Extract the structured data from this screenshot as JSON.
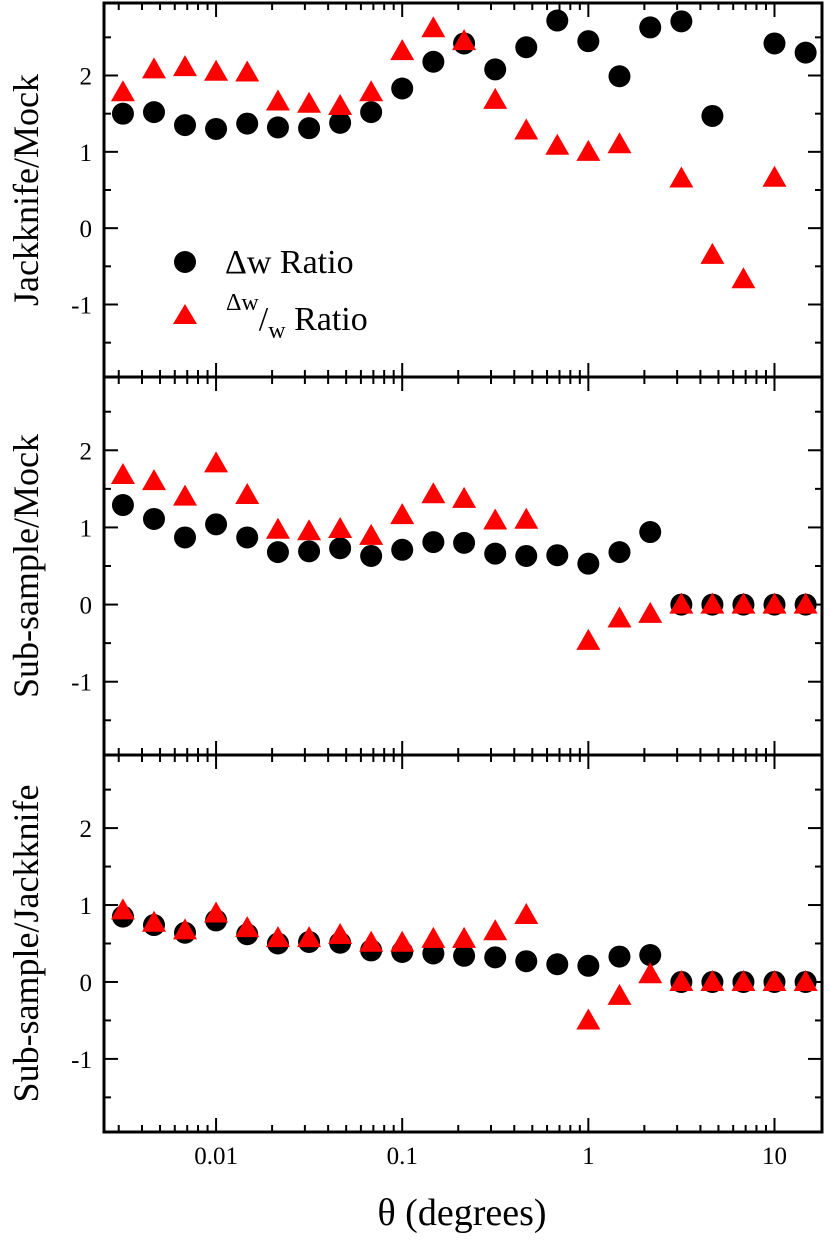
{
  "chart_data": {
    "type": "scatter",
    "xscale": "log",
    "xlim": [
      0.0025,
      18
    ],
    "xlabel": "θ (degrees)",
    "x_tick_labels": [
      "0.01",
      "0.1",
      "1",
      "10"
    ],
    "x_tick_values": [
      0.01,
      0.1,
      1,
      10
    ],
    "legend": {
      "placement": "lower-left of top panel",
      "entries": [
        {
          "marker": "circle",
          "color": "#000000",
          "label_base": "Δw",
          "label_rest": " Ratio"
        },
        {
          "marker": "triangle",
          "color": "#ff0000",
          "label_num": "Δw",
          "label_den": "w",
          "label_rest": " Ratio"
        }
      ]
    },
    "x": [
      0.00316,
      0.00464,
      0.00681,
      0.01,
      0.0147,
      0.0215,
      0.0316,
      0.0464,
      0.0681,
      0.1,
      0.147,
      0.215,
      0.316,
      0.464,
      0.681,
      1.0,
      1.47,
      2.15,
      3.16,
      4.64,
      6.81,
      10.0,
      14.7
    ],
    "panels": [
      {
        "ylabel": "Jackknife/Mock",
        "ylim": [
          -1.95,
          2.95
        ],
        "y_tick_values": [
          -1,
          0,
          1,
          2
        ],
        "y_tick_labels": [
          "-1",
          "0",
          "1",
          "2"
        ],
        "series": [
          {
            "name": "Δw Ratio",
            "marker": "circle",
            "color": "#000000",
            "values": [
              1.5,
              1.52,
              1.35,
              1.3,
              1.37,
              1.32,
              1.31,
              1.38,
              1.52,
              1.83,
              2.18,
              2.42,
              2.08,
              2.37,
              2.72,
              2.45,
              1.99,
              2.63,
              2.71,
              1.47,
              null,
              2.42,
              2.3
            ]
          },
          {
            "name": "Δw/w Ratio",
            "marker": "triangle",
            "color": "#ff0000",
            "values": [
              1.78,
              2.08,
              2.11,
              2.05,
              2.04,
              1.66,
              1.63,
              1.6,
              1.78,
              2.32,
              2.62,
              2.45,
              1.68,
              1.28,
              1.08,
              1.0,
              1.1,
              null,
              0.65,
              -0.35,
              -0.67,
              0.66,
              null
            ]
          }
        ]
      },
      {
        "ylabel": "Sub-sample/Mock",
        "ylim": [
          -1.95,
          2.95
        ],
        "y_tick_values": [
          -1,
          0,
          1,
          2
        ],
        "y_tick_labels": [
          "-1",
          "0",
          "1",
          "2"
        ],
        "series": [
          {
            "name": "Δw Ratio",
            "marker": "circle",
            "color": "#000000",
            "values": [
              1.29,
              1.11,
              0.87,
              1.04,
              0.87,
              0.68,
              0.69,
              0.73,
              0.63,
              0.71,
              0.81,
              0.8,
              0.66,
              0.63,
              0.64,
              0.53,
              0.68,
              0.94,
              0.0,
              0.0,
              0.0,
              0.0,
              0.0
            ]
          },
          {
            "name": "Δw/w Ratio",
            "marker": "triangle",
            "color": "#ff0000",
            "values": [
              1.68,
              1.6,
              1.4,
              1.83,
              1.42,
              0.97,
              0.95,
              0.98,
              0.89,
              1.16,
              1.43,
              1.37,
              1.09,
              1.1,
              null,
              -0.47,
              -0.18,
              -0.12,
              0.0,
              0.0,
              0.0,
              0.0,
              0.0
            ]
          }
        ]
      },
      {
        "ylabel": "Sub-sample/Jackknife",
        "ylim": [
          -1.95,
          2.95
        ],
        "y_tick_values": [
          -1,
          0,
          1,
          2
        ],
        "y_tick_labels": [
          "-1",
          "0",
          "1",
          "2"
        ],
        "series": [
          {
            "name": "Δw Ratio",
            "marker": "circle",
            "color": "#000000",
            "values": [
              0.85,
              0.74,
              0.64,
              0.8,
              0.62,
              0.5,
              0.52,
              0.51,
              0.41,
              0.39,
              0.37,
              0.34,
              0.32,
              0.27,
              0.23,
              0.21,
              0.33,
              0.35,
              0.0,
              0.0,
              0.0,
              0.0,
              0.0
            ]
          },
          {
            "name": "Δw/w Ratio",
            "marker": "triangle",
            "color": "#ff0000",
            "values": [
              0.93,
              0.77,
              0.67,
              0.89,
              0.7,
              0.57,
              0.57,
              0.61,
              0.51,
              0.51,
              0.56,
              0.56,
              0.66,
              0.87,
              null,
              -0.5,
              -0.18,
              0.1,
              0.0,
              0.0,
              0.0,
              0.0,
              0.0
            ]
          }
        ]
      }
    ]
  }
}
